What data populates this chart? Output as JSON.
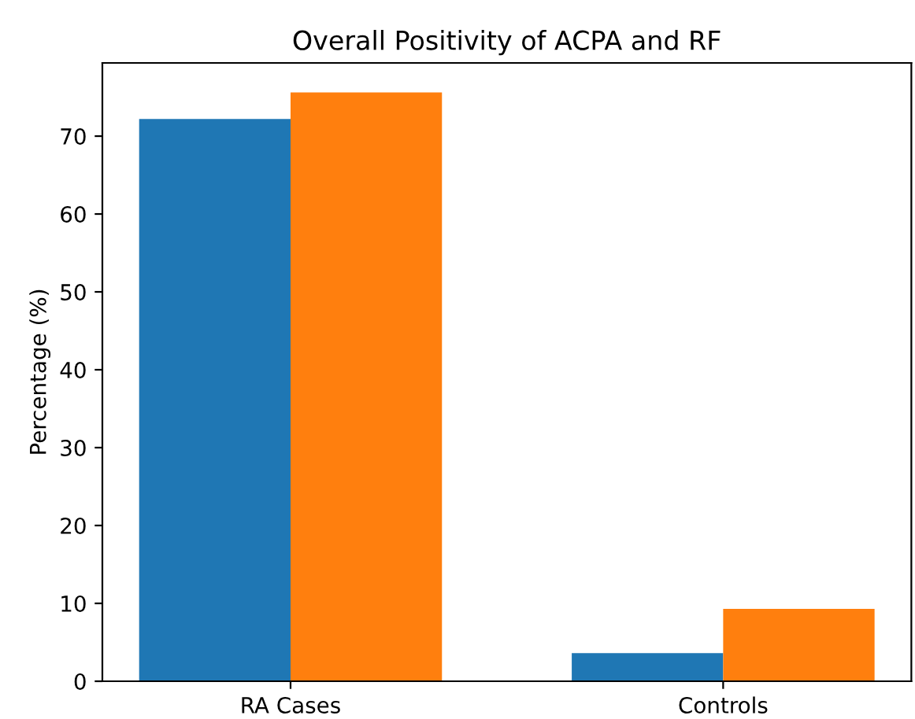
{
  "chart_data": {
    "type": "bar",
    "title": "Overall Positivity of ACPA and RF",
    "ylabel": "Percentage (%)",
    "categories": [
      "RA Cases",
      "Controls"
    ],
    "series": [
      {
        "color": "#1f77b4",
        "values": [
          72.2,
          3.6
        ]
      },
      {
        "color": "#ff7f0e",
        "values": [
          75.6,
          9.3
        ]
      }
    ],
    "ylim": [
      0,
      79.4
    ],
    "yticks": [
      0,
      10,
      20,
      30,
      40,
      50,
      60,
      70
    ],
    "grid": false,
    "legend": false
  }
}
